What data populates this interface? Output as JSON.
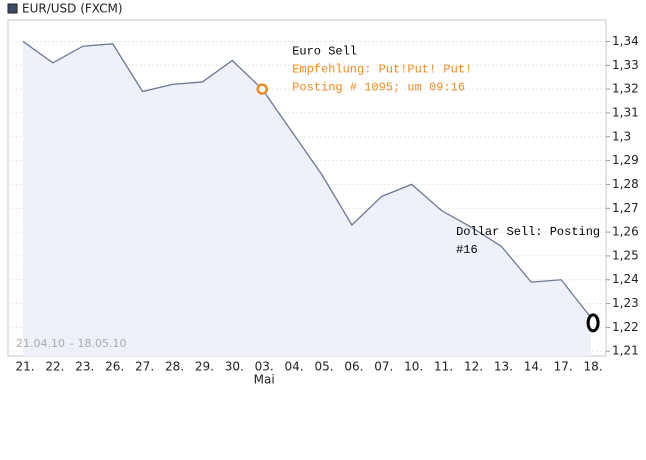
{
  "chart_data": {
    "type": "line",
    "title": "EUR/USD (FXCM)",
    "date_range": "21.04.10 – 18.05.10",
    "month_label": {
      "category": "03.",
      "label": "Mai"
    },
    "categories": [
      "21.",
      "22.",
      "23.",
      "26.",
      "27.",
      "28.",
      "29.",
      "30.",
      "03.",
      "04.",
      "05.",
      "06.",
      "07.",
      "10.",
      "11.",
      "12.",
      "13.",
      "14.",
      "17.",
      "18."
    ],
    "series": [
      {
        "name": "EUR/USD",
        "color": "#6b7894",
        "fill": "#eef1fa",
        "values": [
          1.34,
          1.331,
          1.338,
          1.339,
          1.319,
          1.322,
          1.323,
          1.332,
          1.32,
          1.302,
          1.284,
          1.263,
          1.275,
          1.28,
          1.269,
          1.262,
          1.254,
          1.239,
          1.24,
          1.224
        ]
      }
    ],
    "ylim": [
      1.208,
      1.349
    ],
    "yticks": [
      {
        "value": 1.21,
        "label": "1,21"
      },
      {
        "value": 1.22,
        "label": "1,22"
      },
      {
        "value": 1.23,
        "label": "1,23"
      },
      {
        "value": 1.24,
        "label": "1,24"
      },
      {
        "value": 1.25,
        "label": "1,25"
      },
      {
        "value": 1.26,
        "label": "1,26"
      },
      {
        "value": 1.27,
        "label": "1,27"
      },
      {
        "value": 1.28,
        "label": "1,28"
      },
      {
        "value": 1.29,
        "label": "1,29"
      },
      {
        "value": 1.3,
        "label": "1,3"
      },
      {
        "value": 1.31,
        "label": "1,31"
      },
      {
        "value": 1.32,
        "label": "1,32"
      },
      {
        "value": 1.33,
        "label": "1,33"
      },
      {
        "value": 1.34,
        "label": "1,34"
      }
    ],
    "grid": true,
    "annotations": [
      {
        "category": "03.",
        "color": "#f08a24",
        "marker": "circle",
        "lines": [
          {
            "text": "Euro Sell",
            "color": "#000000"
          },
          {
            "text": "Empfehlung: Put!Put! Put!",
            "color": "#f08a24"
          },
          {
            "text": "Posting # 1095; um 09:16",
            "color": "#f08a24"
          }
        ]
      },
      {
        "category": "18.",
        "color": "#000000",
        "marker": "ellipse",
        "lines": [
          {
            "text": "Dollar Sell: Posting",
            "color": "#000000"
          },
          {
            "text": "#16",
            "color": "#000000"
          }
        ]
      }
    ]
  }
}
